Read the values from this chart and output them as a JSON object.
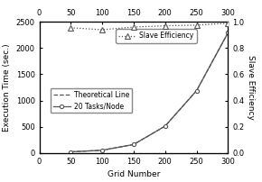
{
  "grid_numbers": [
    50,
    100,
    150,
    200,
    250,
    300
  ],
  "exec_time_actual": [
    20,
    50,
    160,
    510,
    1185,
    2290
  ],
  "exec_time_theoretical": [
    20,
    50,
    160,
    510,
    1185,
    2290
  ],
  "slave_efficiency": [
    0.955,
    0.94,
    0.96,
    0.97,
    0.975,
    0.99
  ],
  "ylim_left": [
    0,
    2500
  ],
  "ylim_right": [
    0.0,
    1.0
  ],
  "yticks_left": [
    0,
    500,
    1000,
    1500,
    2000,
    2500
  ],
  "yticks_right": [
    0.0,
    0.2,
    0.4,
    0.6,
    0.8,
    1.0
  ],
  "xticks": [
    0,
    50,
    100,
    150,
    200,
    250,
    300
  ],
  "xlabel": "Grid Number",
  "ylabel_left": "Execution Time (sec.)",
  "ylabel_right": "Slave Efficiency",
  "legend_exec_labels": [
    "Theoretical Line",
    "20 Tasks/Node"
  ],
  "legend_eff_label": "Slave Efficiency",
  "line_color": "#555555"
}
